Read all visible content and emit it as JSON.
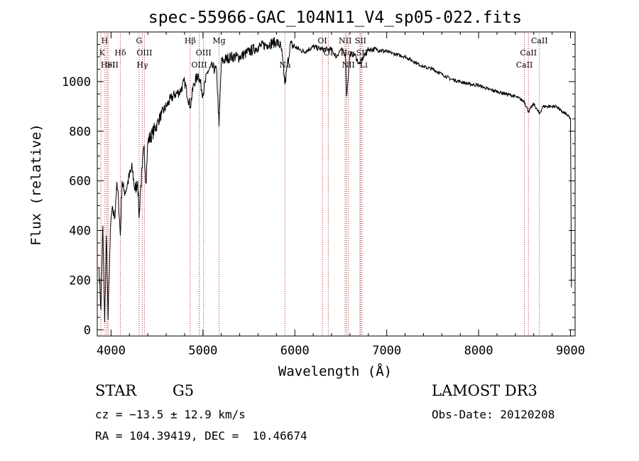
{
  "chart_data": {
    "type": "line",
    "title": "spec-55966-GAC_104N11_V4_sp05-022.fits",
    "xlabel": "Wavelength (Å)",
    "ylabel": "Flux (relative)",
    "xlim": [
      3850,
      9050
    ],
    "ylim": [
      -25,
      1200
    ],
    "x_ticks": [
      4000,
      5000,
      6000,
      7000,
      8000,
      9000
    ],
    "y_ticks": [
      0,
      200,
      400,
      600,
      800,
      1000
    ],
    "grid": false,
    "colors": {
      "spectrum": "#000000",
      "lines": "#b22222",
      "axes": "#000000"
    },
    "series": [
      {
        "name": "spectrum",
        "x": [
          3870,
          3890,
          3910,
          3930,
          3950,
          3968,
          3985,
          4000,
          4020,
          4040,
          4060,
          4080,
          4101,
          4120,
          4140,
          4160,
          4180,
          4200,
          4230,
          4260,
          4290,
          4305,
          4320,
          4340,
          4360,
          4380,
          4400,
          4450,
          4500,
          4550,
          4600,
          4650,
          4700,
          4750,
          4800,
          4861,
          4900,
          4950,
          5000,
          5050,
          5100,
          5150,
          5175,
          5200,
          5300,
          5400,
          5500,
          5600,
          5700,
          5800,
          5850,
          5893,
          5950,
          6000,
          6050,
          6100,
          6150,
          6200,
          6300,
          6400,
          6450,
          6500,
          6550,
          6563,
          6600,
          6650,
          6700,
          6800,
          6900,
          7000,
          7100,
          7200,
          7300,
          7400,
          7500,
          7600,
          7700,
          7800,
          7900,
          8000,
          8100,
          8200,
          8300,
          8400,
          8498,
          8542,
          8600,
          8662,
          8700,
          8800,
          8850,
          8900,
          8950,
          9000,
          9010
        ],
        "y": [
          250,
          80,
          420,
          30,
          380,
          40,
          300,
          450,
          480,
          450,
          580,
          530,
          380,
          600,
          560,
          560,
          590,
          620,
          650,
          560,
          600,
          450,
          560,
          650,
          740,
          590,
          760,
          790,
          830,
          870,
          900,
          930,
          950,
          960,
          1000,
          900,
          990,
          1030,
          950,
          1040,
          1060,
          1040,
          820,
          1080,
          1100,
          1100,
          1120,
          1140,
          1150,
          1160,
          1140,
          990,
          1150,
          1140,
          1130,
          1120,
          1130,
          1140,
          1130,
          1130,
          1100,
          1130,
          1110,
          940,
          1110,
          1110,
          1070,
          1130,
          1130,
          1120,
          1110,
          1100,
          1080,
          1060,
          1050,
          1030,
          1010,
          1000,
          990,
          985,
          970,
          960,
          950,
          940,
          920,
          880,
          910,
          870,
          900,
          900,
          900,
          880,
          870,
          850,
          170
        ]
      }
    ],
    "line_markers": [
      {
        "label": "K",
        "wavelength": 3934,
        "row": 1,
        "anchor": "end"
      },
      {
        "label": "H",
        "wavelength": 3968,
        "row": 0,
        "anchor": "end"
      },
      {
        "label": "HeI",
        "wavelength": 3889,
        "row": 2,
        "anchor": "start"
      },
      {
        "label": "SII",
        "wavelength": 3955,
        "row": 2,
        "anchor": "start"
      },
      {
        "label": "Hδ",
        "wavelength": 4101,
        "row": 1,
        "anchor": "middle"
      },
      {
        "label": "G",
        "wavelength": 4305,
        "row": 0,
        "anchor": "middle"
      },
      {
        "label": "Hγ",
        "wavelength": 4340,
        "row": 2,
        "anchor": "middle"
      },
      {
        "label": "OIII",
        "wavelength": 4363,
        "row": 1,
        "anchor": "middle"
      },
      {
        "label": "Hβ",
        "wavelength": 4861,
        "row": 0,
        "anchor": "middle"
      },
      {
        "label": "OIII",
        "wavelength": 4959,
        "row": 2,
        "anchor": "middle"
      },
      {
        "label": "OIII",
        "wavelength": 5007,
        "row": 1,
        "anchor": "middle"
      },
      {
        "label": "Mg",
        "wavelength": 5175,
        "row": 0,
        "anchor": "middle"
      },
      {
        "label": "Na",
        "wavelength": 5893,
        "row": 2,
        "anchor": "middle"
      },
      {
        "label": "OI",
        "wavelength": 6300,
        "row": 0,
        "anchor": "middle"
      },
      {
        "label": "OI",
        "wavelength": 6364,
        "row": 1,
        "anchor": "middle"
      },
      {
        "label": "NII",
        "wavelength": 6548,
        "row": 0,
        "anchor": "middle"
      },
      {
        "label": "Hα",
        "wavelength": 6563,
        "row": 1,
        "anchor": "middle"
      },
      {
        "label": "NII",
        "wavelength": 6583,
        "row": 2,
        "anchor": "middle"
      },
      {
        "label": "Li",
        "wavelength": 6708,
        "row": 2,
        "anchor": "start"
      },
      {
        "label": "SII",
        "wavelength": 6716,
        "row": 0,
        "anchor": "middle"
      },
      {
        "label": "SII",
        "wavelength": 6731,
        "row": 1,
        "anchor": "middle"
      },
      {
        "label": "CaII",
        "wavelength": 8498,
        "row": 2,
        "anchor": "middle"
      },
      {
        "label": "CaII",
        "wavelength": 8542,
        "row": 1,
        "anchor": "middle"
      },
      {
        "label": "CaII",
        "wavelength": 8662,
        "row": 0,
        "anchor": "middle"
      }
    ]
  },
  "info": {
    "class_label": "STAR",
    "subclass": "G5",
    "survey": "LAMOST DR3",
    "cz": "cz = −13.5 ± 12.9 km/s",
    "obs_date": "Obs-Date: 20120208",
    "radec": "RA = 104.39419, DEC =  10.46674"
  }
}
